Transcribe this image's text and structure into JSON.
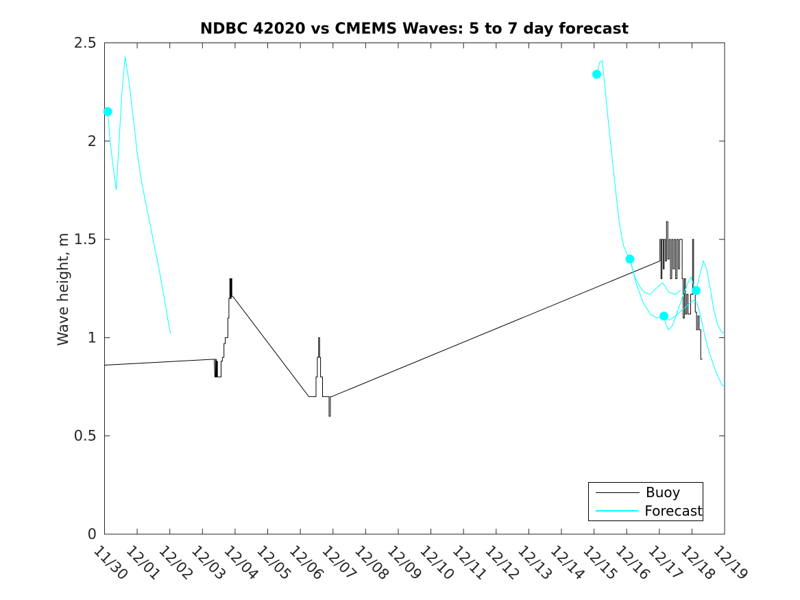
{
  "chart_data": {
    "type": "line",
    "title": "NDBC 42020 vs CMEMS Waves: 5 to 7 day forecast",
    "xlabel": "",
    "x_unit": "days after 11/30 (x tick labels are dates)",
    "x_axis": {
      "tick_labels": [
        "11/30",
        "12/01",
        "12/02",
        "12/03",
        "12/04",
        "12/05",
        "12/06",
        "12/07",
        "12/08",
        "12/09",
        "12/10",
        "12/11",
        "12/12",
        "12/13",
        "12/14",
        "12/15",
        "12/16",
        "12/17",
        "12/18",
        "12/19"
      ],
      "tick_label_rotation_deg": 45
    },
    "y_axis": {
      "label": "Wave height, m",
      "range": [
        0,
        2.5
      ],
      "ticks": [
        0,
        0.5,
        1,
        1.5,
        2,
        2.5
      ],
      "tick_labels": [
        "0",
        "0.5",
        "1",
        "1.5",
        "2",
        "2.5"
      ]
    },
    "grid": false,
    "colors": {
      "buoy": "#000000",
      "forecast": "#00ffff",
      "axis": "#262626"
    },
    "legend": {
      "position": "lower right",
      "entries": [
        {
          "label": "Buoy",
          "color": "#000000"
        },
        {
          "label": "Forecast",
          "color": "#00ffff"
        }
      ]
    },
    "series": [
      {
        "name": "buoy",
        "color": "#000000",
        "width": 1,
        "points": [
          [
            0,
            0.86
          ],
          [
            3.36,
            0.89
          ],
          [
            3.38,
            0.8
          ],
          [
            3.4,
            0.8
          ],
          [
            3.4,
            0.89
          ],
          [
            3.42,
            0.89
          ],
          [
            3.42,
            0.8
          ],
          [
            3.44,
            0.8
          ],
          [
            3.44,
            0.88
          ],
          [
            3.46,
            0.88
          ],
          [
            3.46,
            0.8
          ],
          [
            3.57,
            0.8
          ],
          [
            3.57,
            0.88
          ],
          [
            3.61,
            0.88
          ],
          [
            3.61,
            0.9
          ],
          [
            3.66,
            0.9
          ],
          [
            3.66,
            0.97
          ],
          [
            3.7,
            0.97
          ],
          [
            3.7,
            1
          ],
          [
            3.78,
            1
          ],
          [
            3.78,
            1.1
          ],
          [
            3.81,
            1.1
          ],
          [
            3.81,
            1.2
          ],
          [
            3.84,
            1.2
          ],
          [
            3.84,
            1.3
          ],
          [
            3.86,
            1.3
          ],
          [
            3.86,
            1.2
          ],
          [
            3.88,
            1.2
          ],
          [
            3.88,
            1.3
          ],
          [
            3.9,
            1.3
          ],
          [
            3.9,
            1.21
          ],
          [
            3.93,
            1.21
          ],
          [
            6.26,
            0.7
          ],
          [
            6.48,
            0.7
          ],
          [
            6.48,
            0.8
          ],
          [
            6.52,
            0.8
          ],
          [
            6.52,
            0.9
          ],
          [
            6.56,
            0.9
          ],
          [
            6.56,
            1
          ],
          [
            6.59,
            1
          ],
          [
            6.59,
            0.9
          ],
          [
            6.62,
            0.9
          ],
          [
            6.62,
            0.8
          ],
          [
            6.68,
            0.8
          ],
          [
            6.68,
            0.7
          ],
          [
            6.88,
            0.7
          ],
          [
            6.88,
            0.6
          ],
          [
            6.92,
            0.6
          ],
          [
            6.92,
            0.7
          ],
          [
            6.96,
            0.7
          ],
          [
            17.02,
            1.39
          ],
          [
            17.02,
            1.5
          ],
          [
            17.05,
            1.5
          ],
          [
            17.05,
            1.3
          ],
          [
            17.08,
            1.3
          ],
          [
            17.08,
            1.5
          ],
          [
            17.12,
            1.5
          ],
          [
            17.12,
            1.35
          ],
          [
            17.15,
            1.35
          ],
          [
            17.15,
            1.5
          ],
          [
            17.19,
            1.5
          ],
          [
            17.19,
            1.39
          ],
          [
            17.22,
            1.39
          ],
          [
            17.22,
            1.59
          ],
          [
            17.26,
            1.59
          ],
          [
            17.26,
            1.4
          ],
          [
            17.3,
            1.4
          ],
          [
            17.3,
            1.5
          ],
          [
            17.34,
            1.5
          ],
          [
            17.34,
            1.3
          ],
          [
            17.38,
            1.3
          ],
          [
            17.38,
            1.5
          ],
          [
            17.42,
            1.5
          ],
          [
            17.42,
            1.35
          ],
          [
            17.46,
            1.35
          ],
          [
            17.46,
            1.5
          ],
          [
            17.5,
            1.5
          ],
          [
            17.5,
            1.3
          ],
          [
            17.54,
            1.3
          ],
          [
            17.54,
            1.5
          ],
          [
            17.58,
            1.5
          ],
          [
            17.58,
            1.35
          ],
          [
            17.62,
            1.35
          ],
          [
            17.62,
            1.5
          ],
          [
            17.7,
            1.5
          ],
          [
            17.7,
            1.3
          ],
          [
            17.73,
            1.3
          ],
          [
            17.73,
            1.1
          ],
          [
            17.77,
            1.1
          ],
          [
            17.77,
            1.3
          ],
          [
            17.8,
            1.3
          ],
          [
            17.8,
            1.12
          ],
          [
            17.84,
            1.12
          ],
          [
            17.84,
            1.22
          ],
          [
            17.88,
            1.22
          ],
          [
            17.88,
            1.12
          ],
          [
            17.96,
            1.12
          ],
          [
            17.96,
            1.22
          ],
          [
            18.02,
            1.22
          ],
          [
            18.02,
            1.5
          ],
          [
            18.05,
            1.5
          ],
          [
            18.05,
            1.23
          ],
          [
            18.1,
            1.23
          ],
          [
            18.1,
            1.13
          ],
          [
            18.14,
            1.13
          ],
          [
            18.14,
            1.04
          ],
          [
            18.18,
            1.04
          ],
          [
            18.18,
            1.11
          ],
          [
            18.22,
            1.11
          ],
          [
            18.22,
            1.04
          ],
          [
            18.27,
            1.04
          ],
          [
            18.27,
            0.89
          ],
          [
            18.32,
            0.89
          ]
        ]
      },
      {
        "name": "forecast-run-1",
        "color": "#00ffff",
        "width": 1,
        "points": [
          [
            0.1,
            2.15
          ],
          [
            0.17,
            2.0
          ],
          [
            0.27,
            1.86
          ],
          [
            0.36,
            1.75
          ],
          [
            0.44,
            1.98
          ],
          [
            0.52,
            2.22
          ],
          [
            0.63,
            2.43
          ],
          [
            0.75,
            2.3
          ],
          [
            0.88,
            2.12
          ],
          [
            1,
            1.94
          ],
          [
            1.15,
            1.78
          ],
          [
            1.32,
            1.64
          ],
          [
            1.5,
            1.49
          ],
          [
            1.68,
            1.34
          ],
          [
            1.82,
            1.21
          ],
          [
            1.93,
            1.1
          ],
          [
            2.02,
            1.02
          ]
        ]
      },
      {
        "name": "forecast-run-2",
        "color": "#00ffff",
        "width": 1,
        "points": [
          [
            15.08,
            2.34
          ],
          [
            15.17,
            2.4
          ],
          [
            15.25,
            2.41
          ],
          [
            15.35,
            2.25
          ],
          [
            15.45,
            2.08
          ],
          [
            15.55,
            1.92
          ],
          [
            15.66,
            1.75
          ],
          [
            15.78,
            1.58
          ],
          [
            15.9,
            1.47
          ],
          [
            16,
            1.43
          ],
          [
            16.1,
            1.4
          ],
          [
            16.25,
            1.31
          ],
          [
            16.4,
            1.26
          ],
          [
            16.55,
            1.23
          ],
          [
            16.72,
            1.22
          ],
          [
            16.9,
            1.25
          ],
          [
            17.1,
            1.28
          ],
          [
            17.3,
            1.23
          ],
          [
            17.5,
            1.22
          ],
          [
            17.65,
            1.24
          ]
        ]
      },
      {
        "name": "forecast-run-3",
        "color": "#00ffff",
        "width": 1,
        "points": [
          [
            16.1,
            1.4
          ],
          [
            16.3,
            1.27
          ],
          [
            16.5,
            1.18
          ],
          [
            16.72,
            1.12
          ],
          [
            16.92,
            1.1
          ],
          [
            17.14,
            1.11
          ],
          [
            17.2,
            1.07
          ],
          [
            17.28,
            1.04
          ],
          [
            17.4,
            1.06
          ],
          [
            17.55,
            1.13
          ],
          [
            17.72,
            1.21
          ],
          [
            17.88,
            1.28
          ],
          [
            17.97,
            1.31
          ],
          [
            18.06,
            1.26
          ],
          [
            18.13,
            1.24
          ],
          [
            18.24,
            1.32
          ],
          [
            18.35,
            1.39
          ],
          [
            18.45,
            1.35
          ],
          [
            18.55,
            1.26
          ],
          [
            18.66,
            1.15
          ],
          [
            18.78,
            1.07
          ],
          [
            18.9,
            1.03
          ],
          [
            19,
            1.02
          ]
        ]
      },
      {
        "name": "forecast-run-4",
        "color": "#00ffff",
        "width": 1,
        "points": [
          [
            17.14,
            1.11
          ],
          [
            17.3,
            1.09
          ],
          [
            17.5,
            1.11
          ],
          [
            17.7,
            1.14
          ],
          [
            17.9,
            1.17
          ],
          [
            18.05,
            1.19
          ],
          [
            18.15,
            1.18
          ],
          [
            18.25,
            1.12
          ],
          [
            18.38,
            1.02
          ],
          [
            18.52,
            0.93
          ],
          [
            18.66,
            0.86
          ],
          [
            18.8,
            0.8
          ],
          [
            18.92,
            0.76
          ],
          [
            19,
            0.75
          ]
        ]
      }
    ],
    "markers": {
      "name": "forecast-start-markers",
      "color": "#00ffff",
      "radius": 6.5,
      "points": [
        [
          0.1,
          2.15
        ],
        [
          15.08,
          2.34
        ],
        [
          16.1,
          1.4
        ],
        [
          17.14,
          1.11
        ],
        [
          18.13,
          1.24
        ]
      ]
    }
  }
}
